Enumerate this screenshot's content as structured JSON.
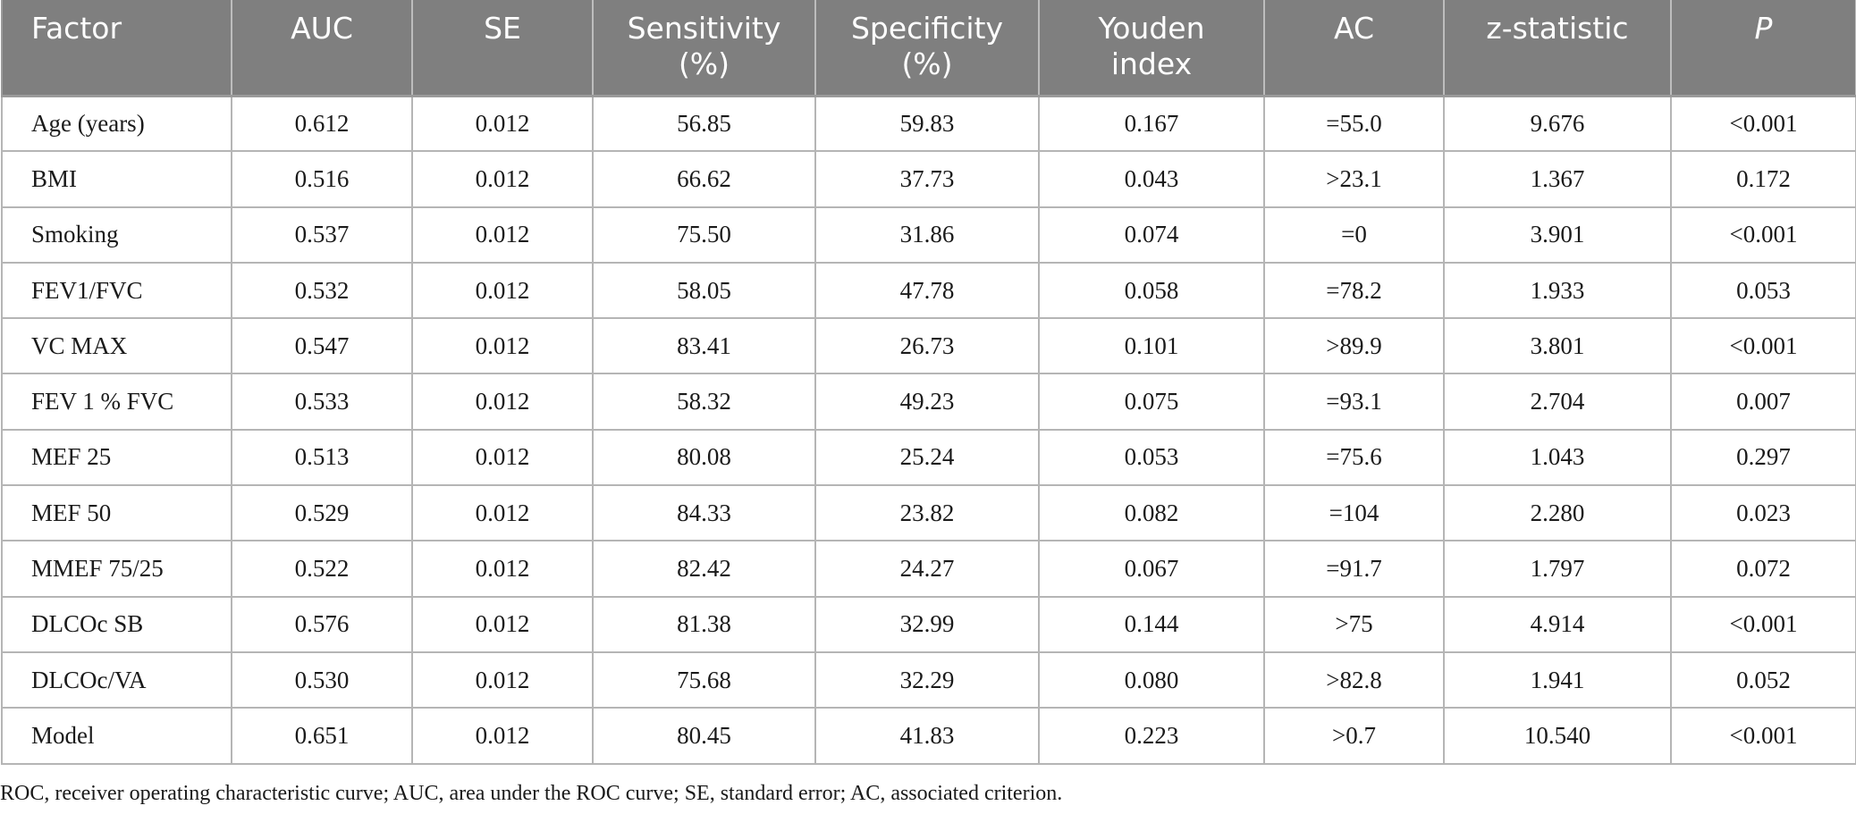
{
  "table": {
    "headers": [
      {
        "line1": "Factor",
        "line2": ""
      },
      {
        "line1": "AUC",
        "line2": ""
      },
      {
        "line1": "SE",
        "line2": ""
      },
      {
        "line1": "Sensitivity",
        "line2": "(%)"
      },
      {
        "line1": "Specificity",
        "line2": "(%)"
      },
      {
        "line1": "Youden",
        "line2": "index"
      },
      {
        "line1": "AC",
        "line2": ""
      },
      {
        "line1": "z-statistic",
        "line2": ""
      },
      {
        "line1": "P",
        "line2": ""
      }
    ],
    "rows": [
      [
        "Age (years)",
        "0.612",
        "0.012",
        "56.85",
        "59.83",
        "0.167",
        "=55.0",
        "9.676",
        "<0.001"
      ],
      [
        "BMI",
        "0.516",
        "0.012",
        "66.62",
        "37.73",
        "0.043",
        ">23.1",
        "1.367",
        "0.172"
      ],
      [
        "Smoking",
        "0.537",
        "0.012",
        "75.50",
        "31.86",
        "0.074",
        "=0",
        "3.901",
        "<0.001"
      ],
      [
        "FEV1/FVC",
        "0.532",
        "0.012",
        "58.05",
        "47.78",
        "0.058",
        "=78.2",
        "1.933",
        "0.053"
      ],
      [
        "VC MAX",
        "0.547",
        "0.012",
        "83.41",
        "26.73",
        "0.101",
        ">89.9",
        "3.801",
        "<0.001"
      ],
      [
        "FEV 1 % FVC",
        "0.533",
        "0.012",
        "58.32",
        "49.23",
        "0.075",
        "=93.1",
        "2.704",
        "0.007"
      ],
      [
        "MEF 25",
        "0.513",
        "0.012",
        "80.08",
        "25.24",
        "0.053",
        "=75.6",
        "1.043",
        "0.297"
      ],
      [
        "MEF 50",
        "0.529",
        "0.012",
        "84.33",
        "23.82",
        "0.082",
        "=104",
        "2.280",
        "0.023"
      ],
      [
        "MMEF 75/25",
        "0.522",
        "0.012",
        "82.42",
        "24.27",
        "0.067",
        "=91.7",
        "1.797",
        "0.072"
      ],
      [
        "DLCOc SB",
        "0.576",
        "0.012",
        "81.38",
        "32.99",
        "0.144",
        ">75",
        "4.914",
        "<0.001"
      ],
      [
        "DLCOc/VA",
        "0.530",
        "0.012",
        "75.68",
        "32.29",
        "0.080",
        ">82.8",
        "1.941",
        "0.052"
      ],
      [
        "Model",
        "0.651",
        "0.012",
        "80.45",
        "41.83",
        "0.223",
        ">0.7",
        "10.540",
        "<0.001"
      ]
    ]
  },
  "footnote": "ROC, receiver operating characteristic curve; AUC, area under the ROC curve; SE, standard error; AC, associated criterion.",
  "colors": {
    "header_bg": "#7f7f7f",
    "header_text": "#ffffff",
    "grid": "#b5b5b5"
  }
}
